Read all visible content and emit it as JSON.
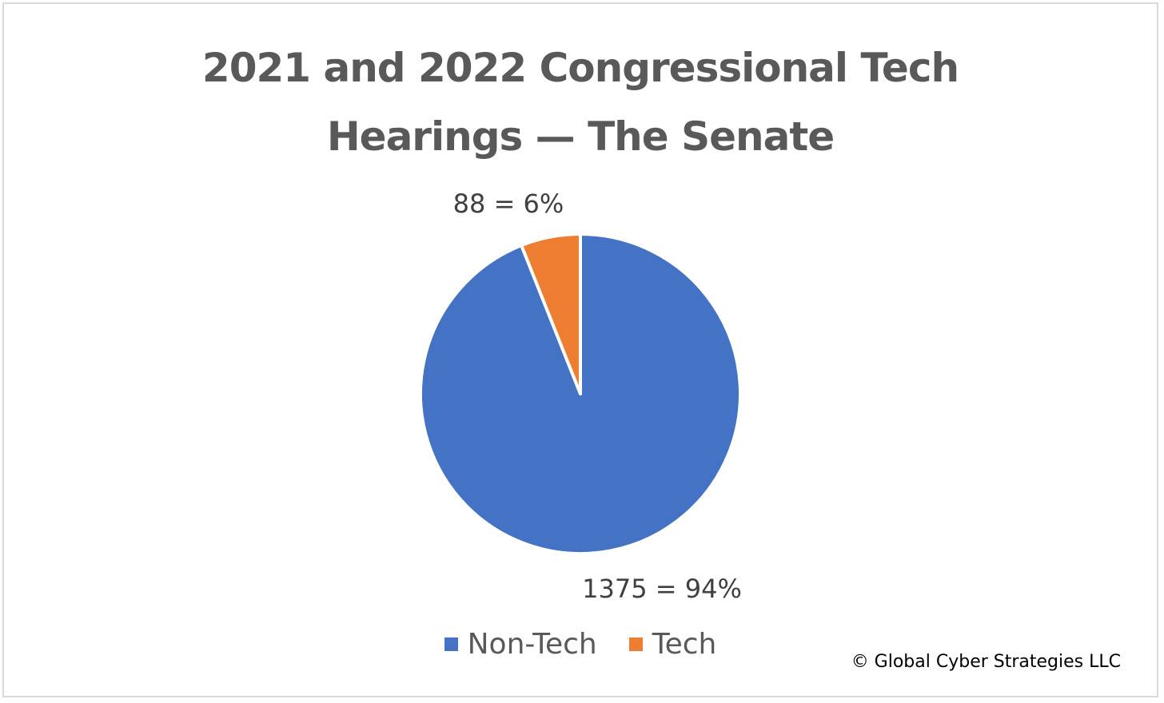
{
  "chart_data": {
    "type": "pie",
    "title_lines": [
      "2021 and 2022 Congressional Tech",
      "Hearings — The Senate"
    ],
    "series": [
      {
        "name": "Non-Tech",
        "value": 1375,
        "percent": 94,
        "label": "1375 = 94%",
        "color": "#4472C4"
      },
      {
        "name": "Tech",
        "value": 88,
        "percent": 6,
        "label": "88 = 6%",
        "color": "#ED7D31"
      }
    ],
    "legend": [
      "Non-Tech",
      "Tech"
    ],
    "legend_position": "bottom"
  },
  "copyright": "© Global Cyber Strategies LLC"
}
